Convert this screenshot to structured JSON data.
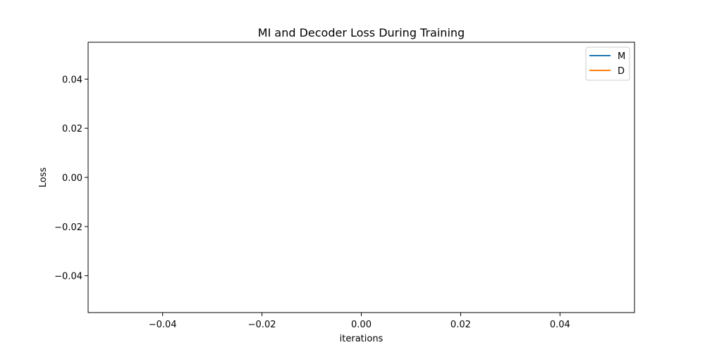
{
  "chart_data": {
    "type": "line",
    "title": "MI and Decoder Loss During Training",
    "xlabel": "iterations",
    "ylabel": "Loss",
    "xlim": [
      -0.055,
      0.055
    ],
    "ylim": [
      -0.055,
      0.055
    ],
    "xticks": [
      -0.04,
      -0.02,
      0.0,
      0.02,
      0.04
    ],
    "xtick_labels": [
      "−0.04",
      "−0.02",
      "0.00",
      "0.02",
      "0.04"
    ],
    "yticks": [
      0.04,
      0.02,
      0.0,
      -0.02,
      -0.04
    ],
    "ytick_labels": [
      "0.04",
      "0.02",
      "0.00",
      "−0.02",
      "−0.04"
    ],
    "grid": false,
    "legend_position": "top-right",
    "series": [
      {
        "name": "M",
        "color": "#1f77b4",
        "x": [],
        "y": []
      },
      {
        "name": "D",
        "color": "#ff7f0e",
        "x": [],
        "y": []
      }
    ]
  }
}
